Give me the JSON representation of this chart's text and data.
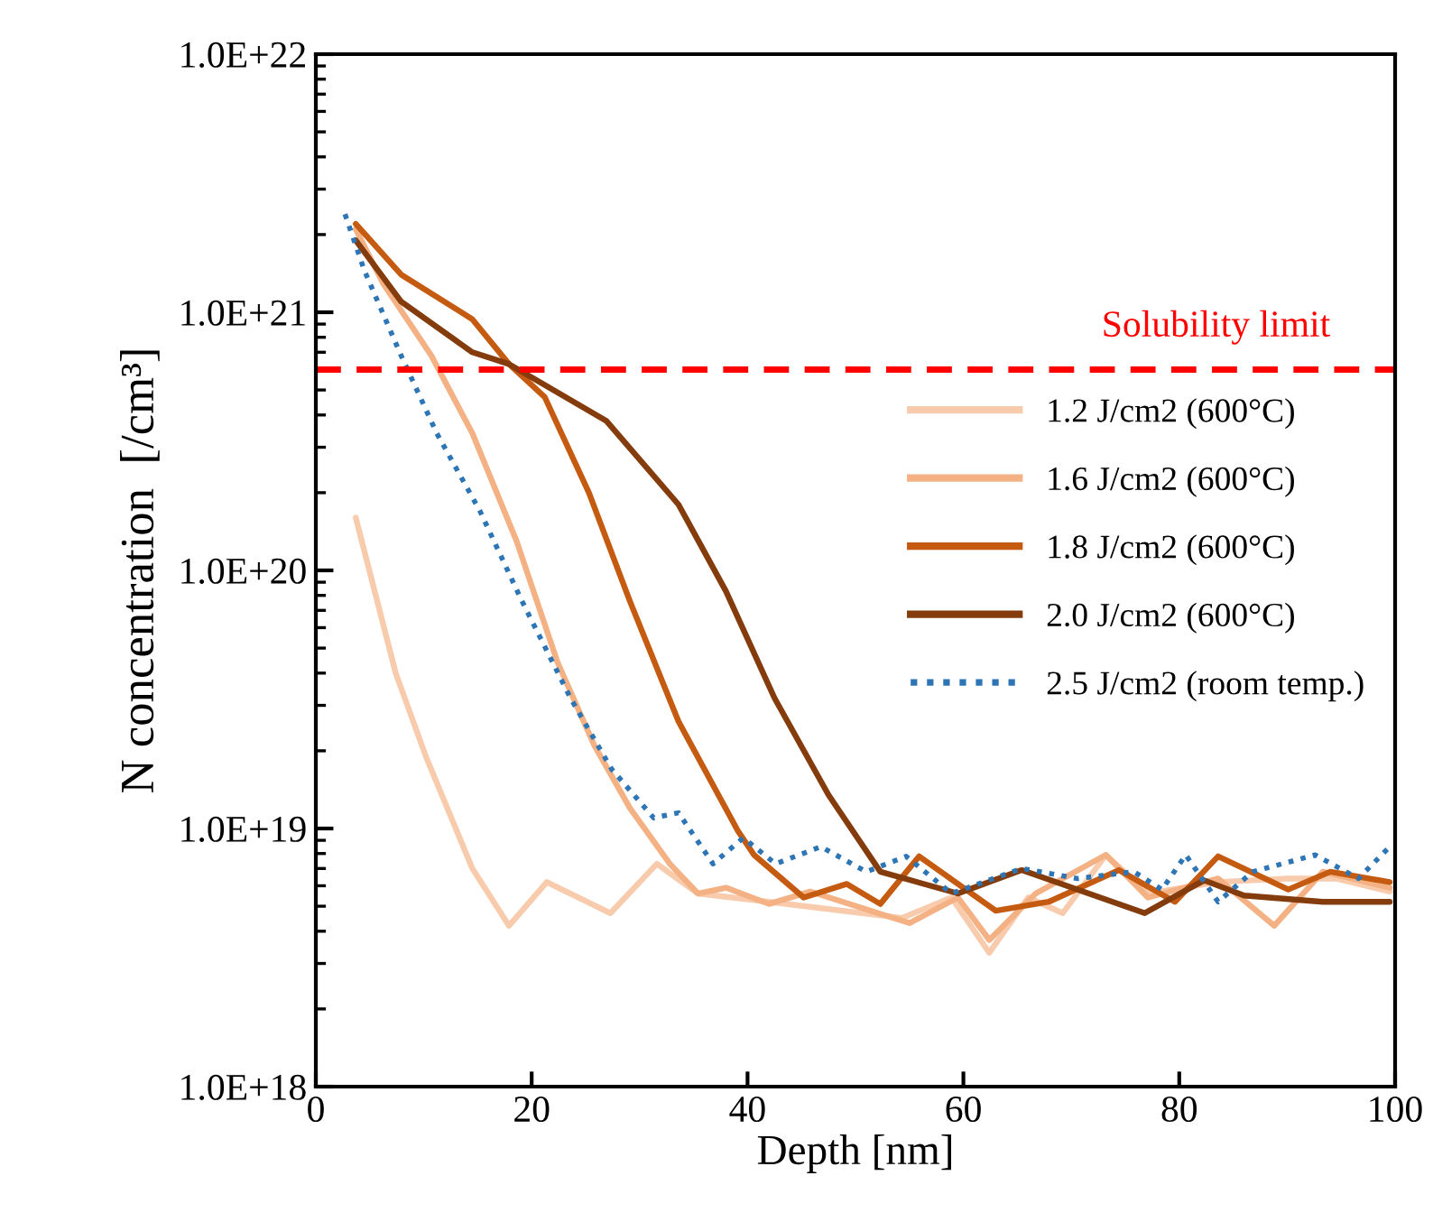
{
  "chart_data": {
    "type": "line",
    "xlabel": "Depth [nm]",
    "ylabel": "N concentration  [/cm³]",
    "log": "y",
    "xlim": [
      0,
      100
    ],
    "xticks": [
      0,
      20,
      40,
      60,
      80,
      100
    ],
    "ylim": [
      1e+18,
      1e+22
    ],
    "yticks": [
      {
        "value": 1e+18,
        "label": "1.0E+18"
      },
      {
        "value": 1e+19,
        "label": "1.0E+19"
      },
      {
        "value": 1e+20,
        "label": "1.0E+20"
      },
      {
        "value": 1e+21,
        "label": "1.0E+21"
      },
      {
        "value": 1e+22,
        "label": "1.0E+22"
      }
    ],
    "grid": false,
    "legend": "right",
    "marker": "none",
    "ref_lines": [
      {
        "axis": "y",
        "value": 6e+20,
        "label": "Solubility limit",
        "color": "#ff0000",
        "line_style": "dashed"
      }
    ],
    "series": [
      {
        "name": "1.2 J/cm2 (600°C)",
        "color": "#f8cbad",
        "line_style": "solid",
        "x": [
          3.7,
          7.4,
          10.2,
          14.5,
          17.9,
          21.4,
          27.3,
          31.6,
          35.4,
          42,
          54.3,
          58.9,
          62.4,
          66,
          69.2,
          73.2,
          77.1,
          83.6,
          90.1,
          94.5,
          99.5
        ],
        "values": [
          1.6e+20,
          4e+19,
          1.9e+19,
          7e+18,
          4.2e+18,
          6.2e+18,
          4.7e+18,
          7.3e+18,
          5.6e+18,
          5.2e+18,
          4.5e+18,
          5.4e+18,
          3.3e+18,
          5.4e+18,
          4.7e+18,
          7.9e+18,
          5.6e+18,
          6.2e+18,
          6.4e+18,
          6.4e+18,
          5.7e+18
        ]
      },
      {
        "name": "1.6 J/cm2 (600°C)",
        "color": "#f4b183",
        "line_style": "solid",
        "x": [
          3.7,
          6.2,
          10.7,
          14.5,
          18.6,
          22.4,
          25.8,
          29.1,
          32.8,
          35.4,
          38,
          42,
          45.8,
          55,
          59.5,
          62.4,
          66.7,
          73.2,
          77.1,
          83.6,
          88.8,
          93.3,
          99.5
        ],
        "values": [
          2.1e+21,
          1.3e+21,
          6.8e+20,
          3.4e+20,
          1.3e+20,
          4.4e+19,
          2.1e+19,
          1.2e+19,
          7.3e+18,
          5.6e+18,
          5.9e+18,
          5.1e+18,
          5.7e+18,
          4.3e+18,
          5.4e+18,
          3.7e+18,
          5.6e+18,
          7.9e+18,
          5.4e+18,
          6.4e+18,
          4.2e+18,
          6.8e+18,
          5.9e+18
        ]
      },
      {
        "name": "1.8 J/cm2 (600°C)",
        "color": "#c55a11",
        "line_style": "solid",
        "x": [
          3.7,
          7.9,
          14.5,
          17.9,
          21.2,
          25.3,
          29.1,
          33.6,
          39.1,
          40.6,
          45.2,
          49.2,
          52.3,
          55.9,
          63,
          67.9,
          74.4,
          79.6,
          83.6,
          90.1,
          94,
          99.5
        ],
        "values": [
          2.2e+21,
          1.4e+21,
          9.4e+20,
          6.3e+20,
          4.7e+20,
          2e+20,
          7.6e+19,
          2.6e+19,
          9.8e+18,
          7.9e+18,
          5.4e+18,
          6.1e+18,
          5.1e+18,
          7.8e+18,
          4.8e+18,
          5.2e+18,
          6.9e+18,
          5.2e+18,
          7.8e+18,
          5.8e+18,
          6.8e+18,
          6.2e+18
        ]
      },
      {
        "name": "2.0 J/cm2 (600°C)",
        "color": "#843c0c",
        "line_style": "solid",
        "x": [
          3.7,
          7.9,
          14.5,
          17.9,
          26.9,
          33.6,
          38,
          42.5,
          47.5,
          52.3,
          59.5,
          65.4,
          76.8,
          82.3,
          86,
          93.3,
          99.5
        ],
        "values": [
          1.9e+21,
          1.1e+21,
          7e+20,
          6.3e+20,
          3.8e+20,
          1.8e+20,
          8.3e+19,
          3.2e+19,
          1.35e+19,
          6.8e+18,
          5.6e+18,
          6.9e+18,
          4.7e+18,
          6.3e+18,
          5.5e+18,
          5.2e+18,
          5.2e+18
        ]
      },
      {
        "name": "2.5 J/cm2 (room temp.)",
        "color": "#2e75b6",
        "line_style": "dotted",
        "x": [
          2.7,
          4.5,
          7.9,
          11.2,
          15.2,
          19.1,
          23.6,
          27.4,
          31.3,
          33.6,
          36.8,
          39.6,
          42.6,
          46.8,
          51,
          54.7,
          58.9,
          65.4,
          70.6,
          75.8,
          78.4,
          80.6,
          83.6,
          86.8,
          92.6,
          96.6,
          99.5
        ],
        "values": [
          2.4e+21,
          1.45e+21,
          6.8e+20,
          3.4e+20,
          1.7e+20,
          7.6e+19,
          3.2e+19,
          1.7e+19,
          1.1e+19,
          1.15e+19,
          7.3e+18,
          9.2e+18,
          7.3e+18,
          8.5e+18,
          6.8e+18,
          7.8e+18,
          5.6e+18,
          7e+18,
          6.4e+18,
          6.8e+18,
          5.8e+18,
          7.9e+18,
          5.2e+18,
          6.8e+18,
          7.9e+18,
          6.4e+18,
          8.5e+18
        ]
      }
    ]
  }
}
